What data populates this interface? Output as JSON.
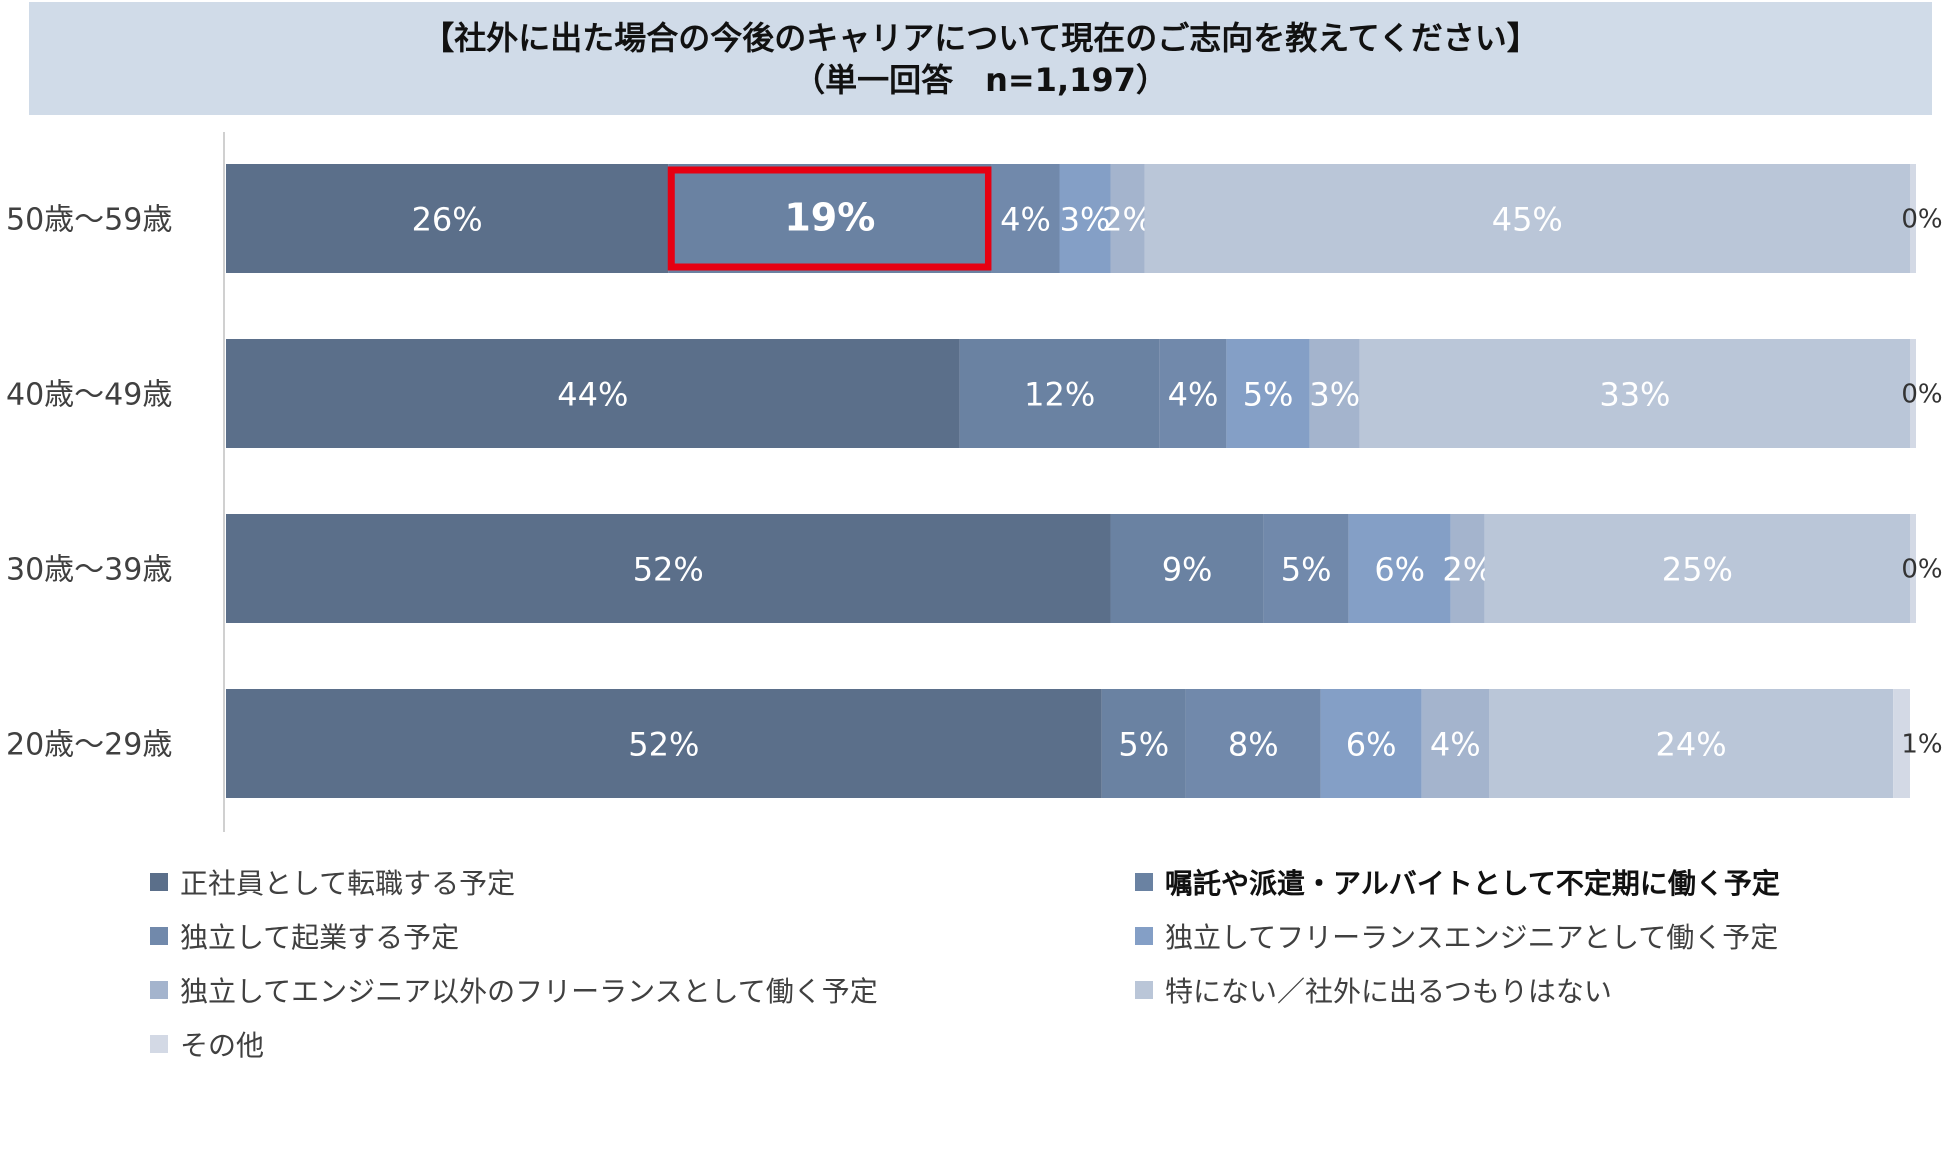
{
  "chart_data": {
    "type": "bar",
    "orientation": "horizontal-stacked-100",
    "title_lines": [
      "【社外に出た場合の今後のキャリアについて現在のご志向を教えてください】",
      "（単一回答　n=1,197）"
    ],
    "categories": [
      "50歳～59歳",
      "40歳～49歳",
      "30歳～39歳",
      "20歳～29歳"
    ],
    "series": [
      {
        "name": "正社員として転職する予定",
        "color": "#5b6f8a",
        "values": [
          26,
          44,
          52,
          52
        ]
      },
      {
        "name": "嘱託や派遣・アルバイトとして不定期に働く予定",
        "color": "#6a82a2",
        "values": [
          19,
          12,
          9,
          5
        ]
      },
      {
        "name": "独立して起業する予定",
        "color": "#7189ab",
        "values": [
          4,
          4,
          5,
          8
        ]
      },
      {
        "name": "独立してフリーランスエンジニアとして働く予定",
        "color": "#849fc6",
        "values": [
          3,
          5,
          6,
          6
        ]
      },
      {
        "name": "独立してエンジニア以外のフリーランスとして働く予定",
        "color": "#a4b4cd",
        "values": [
          2,
          3,
          2,
          4
        ]
      },
      {
        "name": "特にない／社外に出るつもりはない",
        "color": "#bac6d8",
        "values": [
          45,
          33,
          25,
          24
        ]
      },
      {
        "name": "その他",
        "color": "#d3d9e5",
        "values": [
          0,
          0,
          0,
          1
        ]
      }
    ],
    "data_labels": [
      [
        "26%",
        "19%",
        "4%",
        "3%",
        "2%",
        "45%",
        "0%"
      ],
      [
        "44%",
        "12%",
        "4%",
        "5%",
        "3%",
        "33%",
        "0%"
      ],
      [
        "52%",
        "9%",
        "5%",
        "6%",
        "2%",
        "25%",
        "0%"
      ],
      [
        "52%",
        "5%",
        "8%",
        "6%",
        "4%",
        "24%",
        "1%"
      ]
    ],
    "highlight": {
      "category_index": 0,
      "series_index": 1,
      "color": "#e60012"
    },
    "legend_bold_index": 1
  }
}
